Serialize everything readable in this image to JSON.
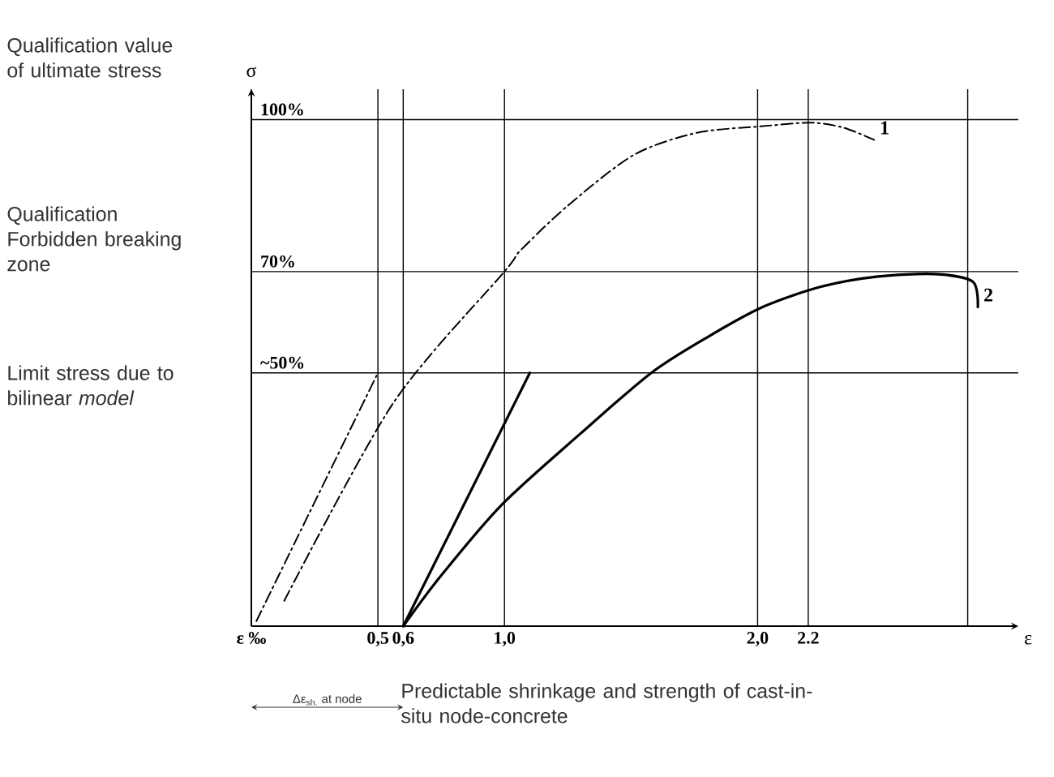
{
  "chart_data": {
    "type": "line",
    "xlabel": "ε",
    "ylabel": "σ",
    "xlim": [
      0,
      3.03
    ],
    "ylim": [
      0,
      106
    ],
    "xticks": [
      {
        "value": 0,
        "label": "ε ‰"
      },
      {
        "value": 0.5,
        "label": "0,5"
      },
      {
        "value": 0.6,
        "label": "0,6"
      },
      {
        "value": 1.0,
        "label": "1,0"
      },
      {
        "value": 2.0,
        "label": "2,0"
      },
      {
        "value": 2.2,
        "label": "2.2"
      },
      {
        "value": 2.83,
        "label": null
      }
    ],
    "yticks": [
      {
        "value": 50,
        "label": "~50%"
      },
      {
        "value": 70,
        "label": "70%"
      },
      {
        "value": 100,
        "label": "100%"
      }
    ],
    "grid": true,
    "series": [
      {
        "color": "#000000",
        "line_style": "dashdot",
        "x": [
          0.02,
          0.5
        ],
        "values": [
          1,
          50
        ]
      },
      {
        "name": "1",
        "color": "#000000",
        "line_style": "dashdot",
        "x": [
          0.13,
          0.56,
          1.0,
          1.06,
          1.25,
          1.51,
          1.76,
          2.02,
          2.21,
          2.34,
          2.46
        ],
        "values": [
          5,
          44,
          70,
          74,
          83,
          93,
          97.4,
          98.7,
          99.4,
          98.4,
          96
        ]
      },
      {
        "color": "#000000",
        "line_style": "solid",
        "x": [
          0.6,
          1.1
        ],
        "values": [
          0,
          50
        ]
      },
      {
        "name": "2",
        "color": "#000000",
        "line_style": "solid",
        "x": [
          0.6,
          0.75,
          0.99,
          1.3,
          1.58,
          1.8,
          2.02,
          2.25,
          2.47,
          2.7,
          2.85,
          2.87
        ],
        "values": [
          0,
          10,
          24,
          38,
          50,
          57,
          63,
          67,
          69,
          69.5,
          68,
          63
        ]
      }
    ],
    "annotations": [
      "Qualification value of ultimate stress",
      "Qualification Forbidden breaking zone",
      "Limit stress due to bilinear *model*",
      "Δε$_{sh.}$ at node",
      "Predictable shrinkage and strength of cast-in-situ node-concrete"
    ]
  }
}
